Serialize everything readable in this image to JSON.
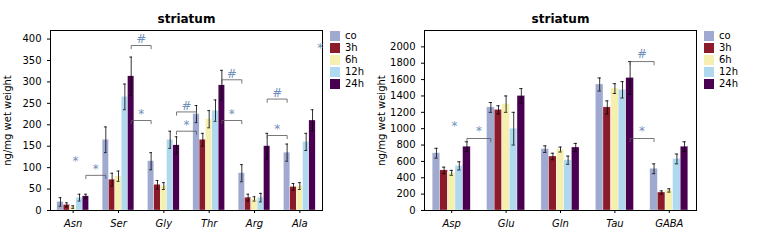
{
  "chart_data": [
    {
      "type": "bar",
      "title": "striatum",
      "ylabel": "ng/mg wet weight",
      "categories": [
        "Asn",
        "Ser",
        "Gly",
        "Thr",
        "Arg",
        "Ala"
      ],
      "series": [
        {
          "name": "co",
          "color": "#a0aad0",
          "values": [
            20,
            165,
            115,
            225,
            87,
            135
          ],
          "errors": [
            10,
            30,
            20,
            20,
            20,
            20
          ]
        },
        {
          "name": "3h",
          "color": "#8b1a2a",
          "values": [
            13,
            72,
            60,
            165,
            30,
            55
          ],
          "errors": [
            5,
            15,
            10,
            15,
            8,
            8
          ]
        },
        {
          "name": "6h",
          "color": "#f5f0b0",
          "values": [
            8,
            80,
            57,
            213,
            27,
            57
          ],
          "errors": [
            3,
            12,
            8,
            20,
            5,
            8
          ]
        },
        {
          "name": "12h",
          "color": "#b0d8ee",
          "values": [
            30,
            265,
            165,
            233,
            30,
            160
          ],
          "errors": [
            8,
            30,
            20,
            25,
            10,
            20
          ]
        },
        {
          "name": "24h",
          "color": "#4a0050",
          "values": [
            33,
            313,
            152,
            292,
            150,
            210
          ],
          "errors": [
            5,
            45,
            20,
            35,
            30,
            25
          ]
        }
      ],
      "ylim": [
        0,
        420
      ],
      "yticks": [
        0,
        50,
        100,
        150,
        200,
        250,
        300,
        350,
        400
      ],
      "grid": false,
      "legend": "right",
      "annotations": [
        {
          "text": "#",
          "from": "Ser",
          "to": "Gly",
          "y": 385,
          "x": 1.5,
          "text_y": 390,
          "color": "#7090bb"
        },
        {
          "text": "#",
          "from": "Gly",
          "to": "Thr",
          "y": 230,
          "x": 2.5,
          "text_y": 235,
          "color": "#7090bb"
        },
        {
          "text": "#",
          "from": "Thr",
          "to": "Arg",
          "y": 305,
          "x": 3.5,
          "text_y": 310,
          "color": "#7090bb"
        },
        {
          "text": "#",
          "from": "Arg",
          "to": "Ala",
          "y": 260,
          "x": 4.5,
          "text_y": 265,
          "color": "#7090bb"
        },
        {
          "text": "*",
          "from": "Asn",
          "to": "Ser",
          "y": 82,
          "x": 0.5,
          "text_y": 88,
          "color": "#7090bb"
        },
        {
          "text": "*",
          "from": "Ser",
          "to": "Gly",
          "y": 210,
          "x": 1.5,
          "text_y": 216,
          "color": "#7090bb"
        },
        {
          "text": "*",
          "from": "Gly",
          "to": "Thr",
          "y": 185,
          "x": 2.5,
          "text_y": 191,
          "color": "#7090bb"
        },
        {
          "text": "*",
          "from": "Thr",
          "to": "Arg",
          "y": 210,
          "x": 3.5,
          "text_y": 216,
          "color": "#7090bb"
        },
        {
          "text": "*",
          "from": "Arg",
          "to": "Ala",
          "y": 175,
          "x": 4.5,
          "text_y": 181,
          "color": "#7090bb"
        },
        {
          "text": "*",
          "x": 0.05,
          "y": 107,
          "color": "#7090bb"
        },
        {
          "text": "*",
          "x": 5.45,
          "y": 370,
          "color": "#7090bb"
        }
      ]
    },
    {
      "type": "bar",
      "title": "striatum",
      "ylabel": "ng/mg wet weight",
      "categories": [
        "Asp",
        "Glu",
        "Gln",
        "Tau",
        "GABA"
      ],
      "series": [
        {
          "name": "co",
          "color": "#a0aad0",
          "values": [
            700,
            1260,
            750,
            1540,
            510
          ],
          "errors": [
            60,
            60,
            40,
            80,
            60
          ]
        },
        {
          "name": "3h",
          "color": "#8b1a2a",
          "values": [
            490,
            1230,
            660,
            1260,
            220
          ],
          "errors": [
            40,
            50,
            40,
            80,
            20
          ]
        },
        {
          "name": "6h",
          "color": "#f5f0b0",
          "values": [
            460,
            1300,
            745,
            1490,
            245
          ],
          "errors": [
            30,
            100,
            30,
            60,
            20
          ]
        },
        {
          "name": "12h",
          "color": "#b0d8ee",
          "values": [
            545,
            1000,
            615,
            1475,
            630
          ],
          "errors": [
            50,
            200,
            50,
            100,
            60
          ]
        },
        {
          "name": "24h",
          "color": "#4a0050",
          "values": [
            780,
            1400,
            770,
            1620,
            780
          ],
          "errors": [
            60,
            90,
            50,
            200,
            60
          ]
        }
      ],
      "ylim": [
        0,
        2200
      ],
      "yticks": [
        0,
        200,
        400,
        600,
        800,
        1000,
        1200,
        1400,
        1600,
        1800,
        2000
      ],
      "grid": false,
      "legend": "right",
      "annotations": [
        {
          "text": "#",
          "from": "Tau",
          "to": "GABA",
          "y": 1820,
          "x": 3.5,
          "text_y": 1860,
          "color": "#7090bb"
        },
        {
          "text": "*",
          "from": "Asp",
          "to": "Glu",
          "y": 880,
          "x": 0.5,
          "text_y": 920,
          "color": "#7090bb"
        },
        {
          "text": "*",
          "from": "Tau",
          "to": "GABA",
          "y": 880,
          "x": 3.5,
          "text_y": 920,
          "color": "#7090bb"
        },
        {
          "text": "*",
          "x": 0.05,
          "y": 990,
          "color": "#7090bb"
        }
      ]
    }
  ]
}
